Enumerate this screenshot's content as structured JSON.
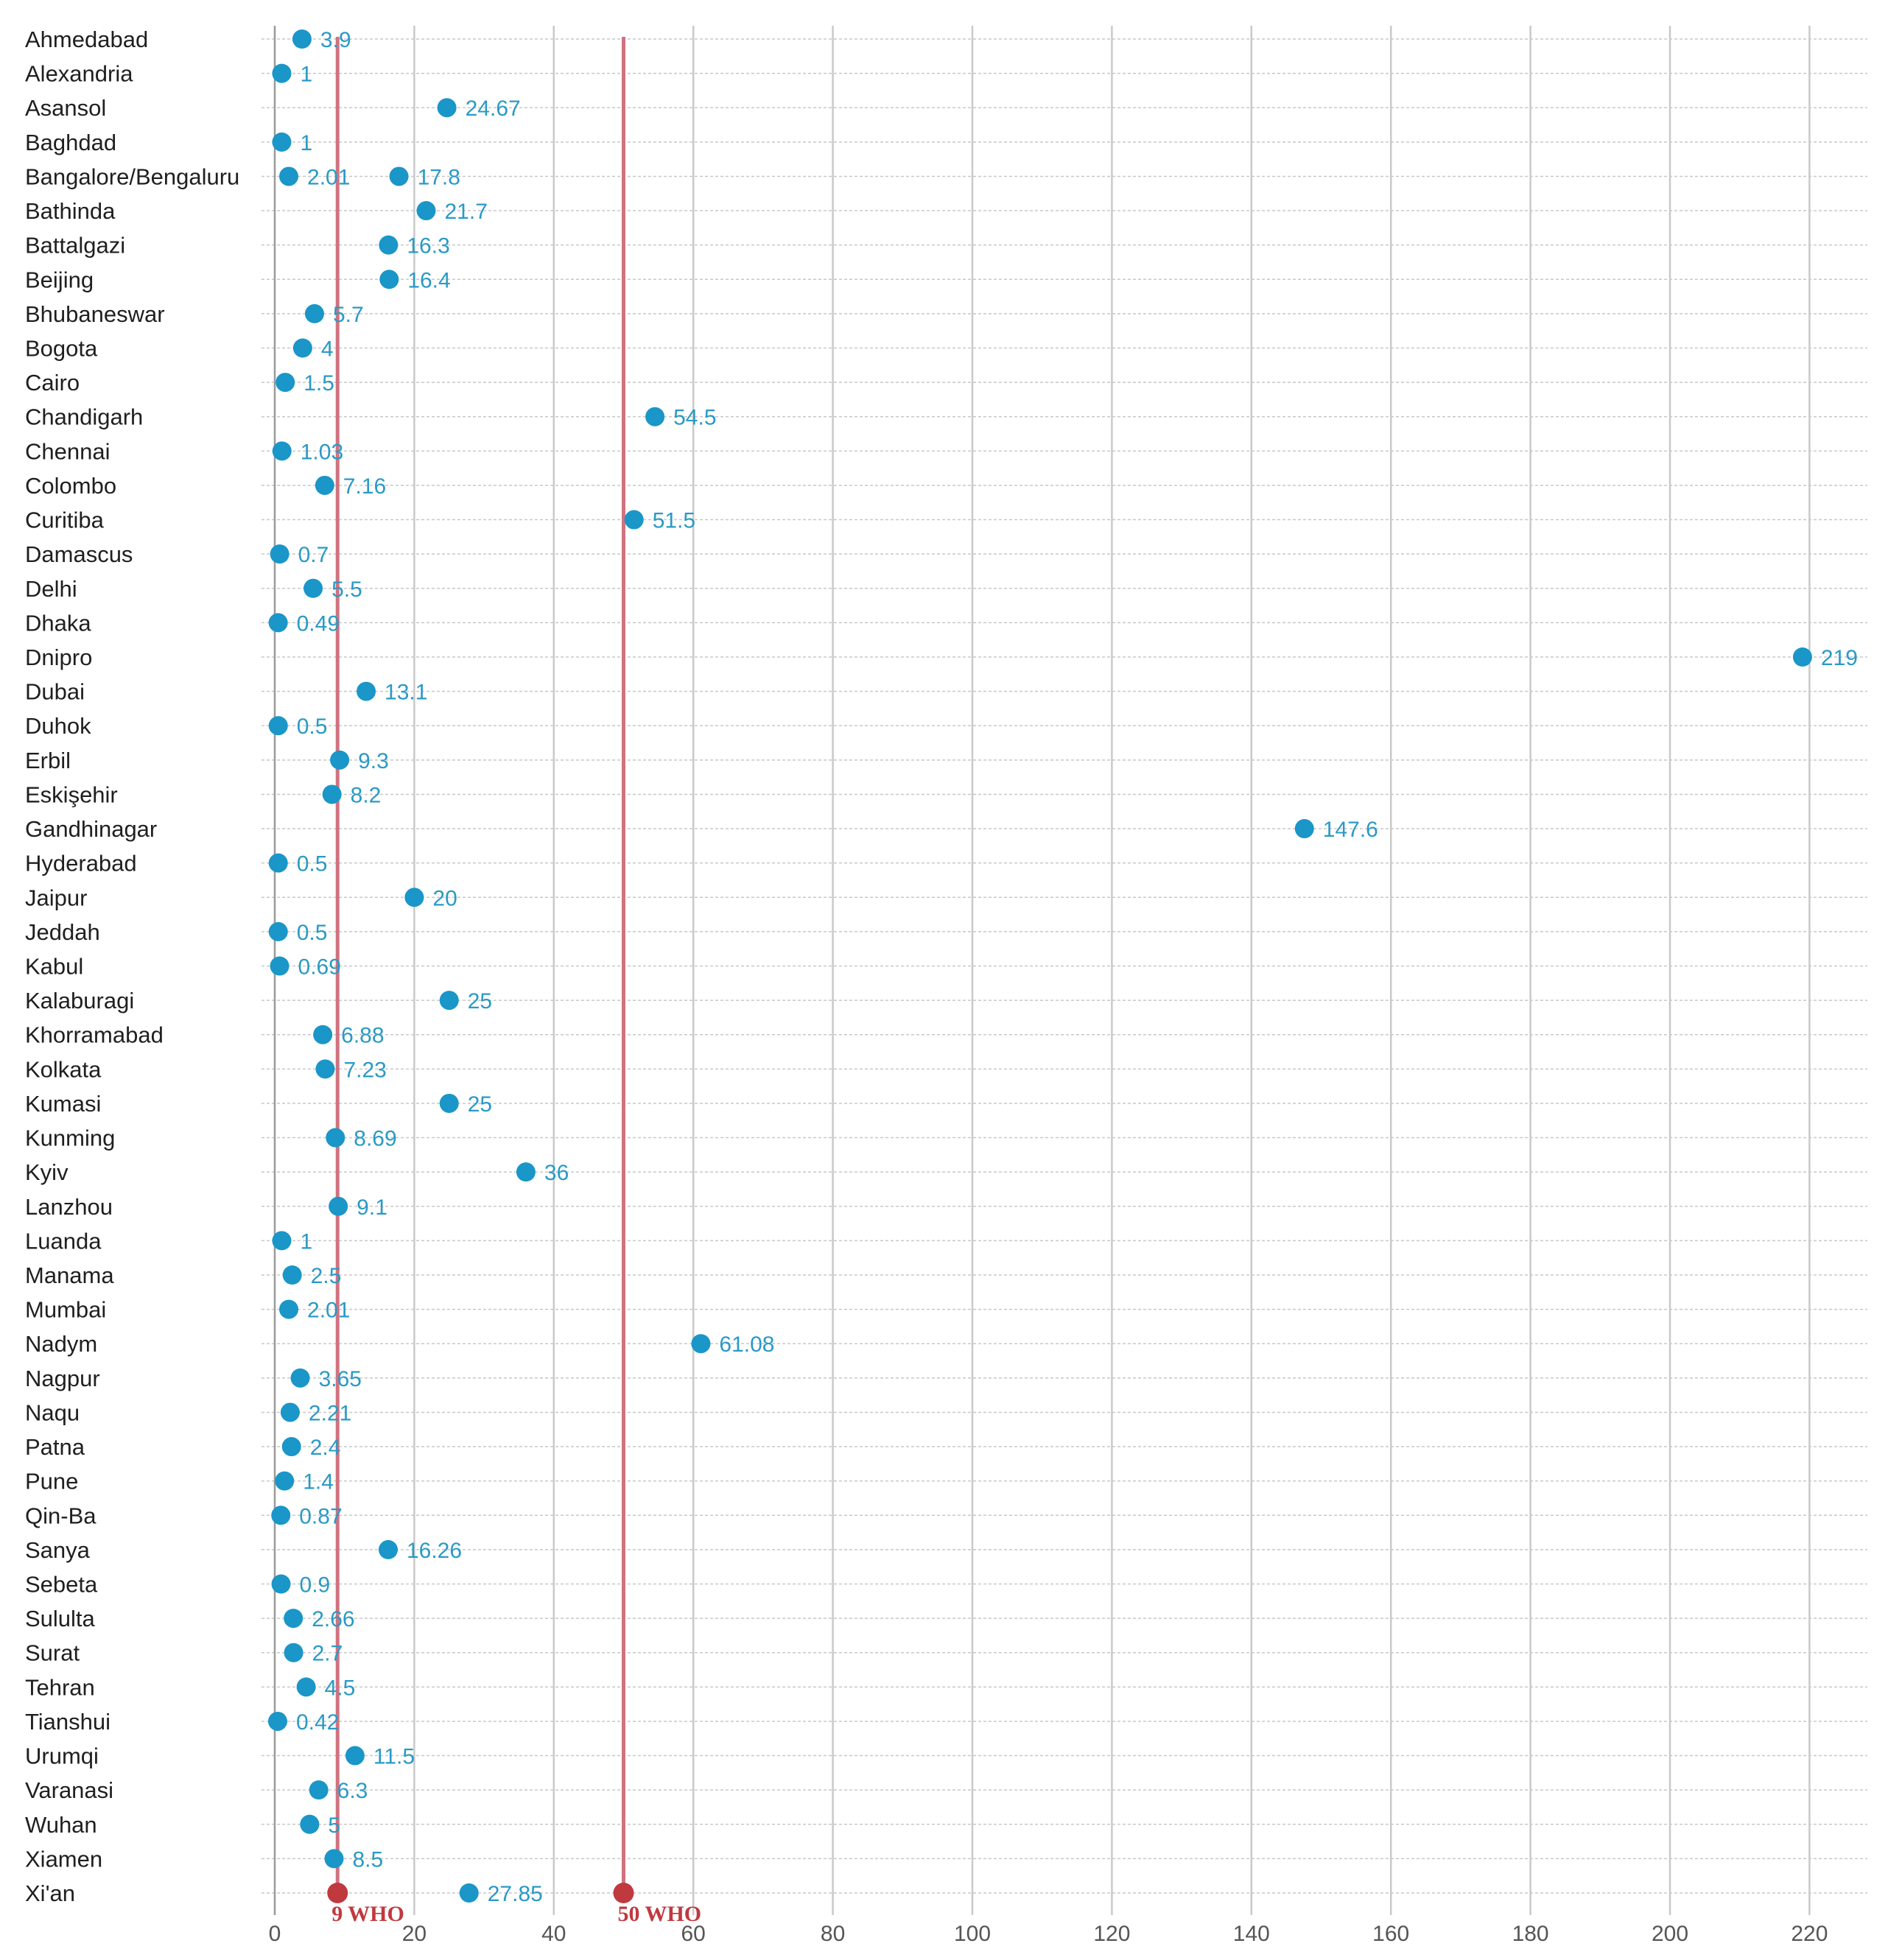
{
  "chart_data": {
    "type": "scatter",
    "title": "",
    "xlabel": "",
    "ylabel": "",
    "xlim": [
      0,
      225
    ],
    "x_ticks": [
      "0",
      "20",
      "40",
      "60",
      "80",
      "100",
      "120",
      "140",
      "160",
      "180",
      "200",
      "220"
    ],
    "grid": "vertical",
    "reference_lines": [
      {
        "value": 9,
        "label": "9 WHO",
        "color": "#d07380",
        "marker_color": "#c0393f"
      },
      {
        "value": 50,
        "label": "50 WHO",
        "color": "#d07380",
        "marker_color": "#c0393f"
      }
    ],
    "point_color": "#1a96c8",
    "rows": [
      {
        "city": "Ahmedabad",
        "points": [
          {
            "value": 3.9,
            "label": "3.9"
          }
        ]
      },
      {
        "city": "Alexandria",
        "points": [
          {
            "value": 1,
            "label": "1"
          }
        ]
      },
      {
        "city": "Asansol",
        "points": [
          {
            "value": 24.67,
            "label": "24.67"
          }
        ]
      },
      {
        "city": "Baghdad",
        "points": [
          {
            "value": 1,
            "label": "1"
          }
        ]
      },
      {
        "city": "Bangalore/Bengaluru",
        "points": [
          {
            "value": 2.01,
            "label": "2.01"
          },
          {
            "value": 17.8,
            "label": "17.8"
          }
        ]
      },
      {
        "city": "Bathinda",
        "points": [
          {
            "value": 21.7,
            "label": "21.7"
          }
        ]
      },
      {
        "city": "Battalgazi",
        "points": [
          {
            "value": 16.3,
            "label": "16.3"
          }
        ]
      },
      {
        "city": "Beijing",
        "points": [
          {
            "value": 16.4,
            "label": "16.4"
          }
        ]
      },
      {
        "city": "Bhubaneswar",
        "points": [
          {
            "value": 5.7,
            "label": "5.7"
          }
        ]
      },
      {
        "city": "Bogota",
        "points": [
          {
            "value": 4,
            "label": "4"
          }
        ]
      },
      {
        "city": "Cairo",
        "points": [
          {
            "value": 1.5,
            "label": "1.5"
          }
        ]
      },
      {
        "city": "Chandigarh",
        "points": [
          {
            "value": 54.5,
            "label": "54.5"
          }
        ]
      },
      {
        "city": "Chennai",
        "points": [
          {
            "value": 1.03,
            "label": "1.03"
          }
        ]
      },
      {
        "city": "Colombo",
        "points": [
          {
            "value": 7.16,
            "label": "7.16"
          }
        ]
      },
      {
        "city": "Curitiba",
        "points": [
          {
            "value": 51.5,
            "label": "51.5"
          }
        ]
      },
      {
        "city": "Damascus",
        "points": [
          {
            "value": 0.7,
            "label": "0.7"
          }
        ]
      },
      {
        "city": "Delhi",
        "points": [
          {
            "value": 5.5,
            "label": "5.5"
          }
        ]
      },
      {
        "city": "Dhaka",
        "points": [
          {
            "value": 0.49,
            "label": "0.49"
          }
        ]
      },
      {
        "city": "Dnipro",
        "points": [
          {
            "value": 219,
            "label": "219"
          }
        ]
      },
      {
        "city": "Dubai",
        "points": [
          {
            "value": 13.1,
            "label": "13.1"
          }
        ]
      },
      {
        "city": "Duhok",
        "points": [
          {
            "value": 0.5,
            "label": "0.5"
          }
        ]
      },
      {
        "city": "Erbil",
        "points": [
          {
            "value": 9.3,
            "label": "9.3"
          }
        ]
      },
      {
        "city": "Eskişehir",
        "points": [
          {
            "value": 8.2,
            "label": "8.2"
          }
        ]
      },
      {
        "city": "Gandhinagar",
        "points": [
          {
            "value": 147.6,
            "label": "147.6"
          }
        ]
      },
      {
        "city": "Hyderabad",
        "points": [
          {
            "value": 0.5,
            "label": "0.5"
          }
        ]
      },
      {
        "city": "Jaipur",
        "points": [
          {
            "value": 20,
            "label": "20"
          }
        ]
      },
      {
        "city": "Jeddah",
        "points": [
          {
            "value": 0.5,
            "label": "0.5"
          }
        ]
      },
      {
        "city": "Kabul",
        "points": [
          {
            "value": 0.69,
            "label": "0.69"
          }
        ]
      },
      {
        "city": "Kalaburagi",
        "points": [
          {
            "value": 25,
            "label": "25"
          }
        ]
      },
      {
        "city": "Khorramabad",
        "points": [
          {
            "value": 6.88,
            "label": "6.88"
          }
        ]
      },
      {
        "city": "Kolkata",
        "points": [
          {
            "value": 7.23,
            "label": "7.23"
          }
        ]
      },
      {
        "city": "Kumasi",
        "points": [
          {
            "value": 25,
            "label": "25"
          }
        ]
      },
      {
        "city": "Kunming",
        "points": [
          {
            "value": 8.69,
            "label": "8.69"
          }
        ]
      },
      {
        "city": "Kyiv",
        "points": [
          {
            "value": 36,
            "label": "36"
          }
        ]
      },
      {
        "city": "Lanzhou",
        "points": [
          {
            "value": 9.1,
            "label": "9.1"
          }
        ]
      },
      {
        "city": "Luanda",
        "points": [
          {
            "value": 1,
            "label": "1"
          }
        ]
      },
      {
        "city": "Manama",
        "points": [
          {
            "value": 2.5,
            "label": "2.5"
          }
        ]
      },
      {
        "city": "Mumbai",
        "points": [
          {
            "value": 2.01,
            "label": "2.01"
          }
        ]
      },
      {
        "city": "Nadym",
        "points": [
          {
            "value": 61.08,
            "label": "61.08"
          }
        ]
      },
      {
        "city": "Nagpur",
        "points": [
          {
            "value": 3.65,
            "label": "3.65"
          }
        ]
      },
      {
        "city": "Naqu",
        "points": [
          {
            "value": 2.21,
            "label": "2.21"
          }
        ]
      },
      {
        "city": "Patna",
        "points": [
          {
            "value": 2.4,
            "label": "2.4"
          }
        ]
      },
      {
        "city": "Pune",
        "points": [
          {
            "value": 1.4,
            "label": "1.4"
          }
        ]
      },
      {
        "city": "Qin-Ba",
        "points": [
          {
            "value": 0.87,
            "label": "0.87"
          }
        ]
      },
      {
        "city": "Sanya",
        "points": [
          {
            "value": 16.26,
            "label": "16.26"
          }
        ]
      },
      {
        "city": "Sebeta",
        "points": [
          {
            "value": 0.9,
            "label": "0.9"
          }
        ]
      },
      {
        "city": "Sululta",
        "points": [
          {
            "value": 2.66,
            "label": "2.66"
          }
        ]
      },
      {
        "city": "Surat",
        "points": [
          {
            "value": 2.7,
            "label": "2.7"
          }
        ]
      },
      {
        "city": "Tehran",
        "points": [
          {
            "value": 4.5,
            "label": "4.5"
          }
        ]
      },
      {
        "city": "Tianshui",
        "points": [
          {
            "value": 0.42,
            "label": "0.42"
          }
        ]
      },
      {
        "city": "Urumqi",
        "points": [
          {
            "value": 11.5,
            "label": "11.5"
          }
        ]
      },
      {
        "city": "Varanasi",
        "points": [
          {
            "value": 6.3,
            "label": "6.3"
          }
        ]
      },
      {
        "city": "Wuhan",
        "points": [
          {
            "value": 5,
            "label": "5"
          }
        ]
      },
      {
        "city": "Xiamen",
        "points": [
          {
            "value": 8.5,
            "label": "8.5"
          }
        ]
      },
      {
        "city": "Xi'an",
        "points": [
          {
            "value": 27.85,
            "label": "27.85"
          }
        ]
      }
    ]
  }
}
